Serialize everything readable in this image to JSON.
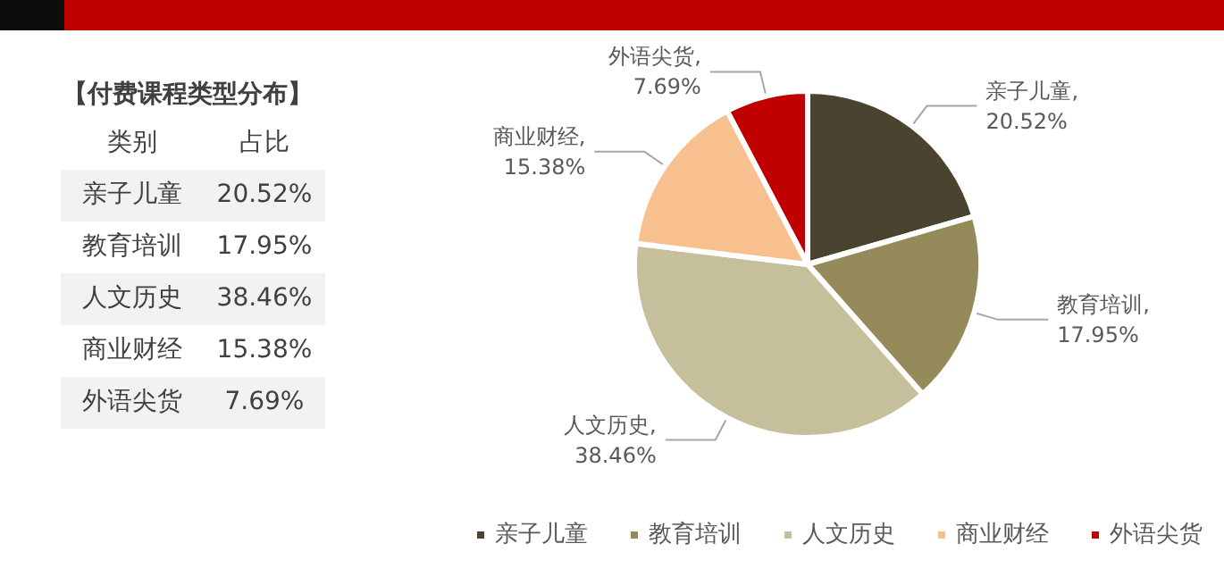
{
  "chart_data": {
    "type": "pie",
    "title": "【付费课程类型分布】",
    "annotations": [
      "类别",
      "占比",
      ",",
      ",",
      ",",
      ",",
      ","
    ],
    "categories": [
      "亲子儿童",
      "教育培训",
      "人文历史",
      "商业财经",
      "外语尖货"
    ],
    "values": [
      20.52,
      17.95,
      38.46,
      15.38,
      7.69
    ],
    "value_labels": [
      "20.52%",
      "17.95%",
      "38.46%",
      "15.38%",
      "7.69%"
    ],
    "colors": [
      "#4a4330",
      "#958b5a",
      "#c6bf9b",
      "#f8c08f",
      "#c00000"
    ],
    "legend": "bottom"
  }
}
